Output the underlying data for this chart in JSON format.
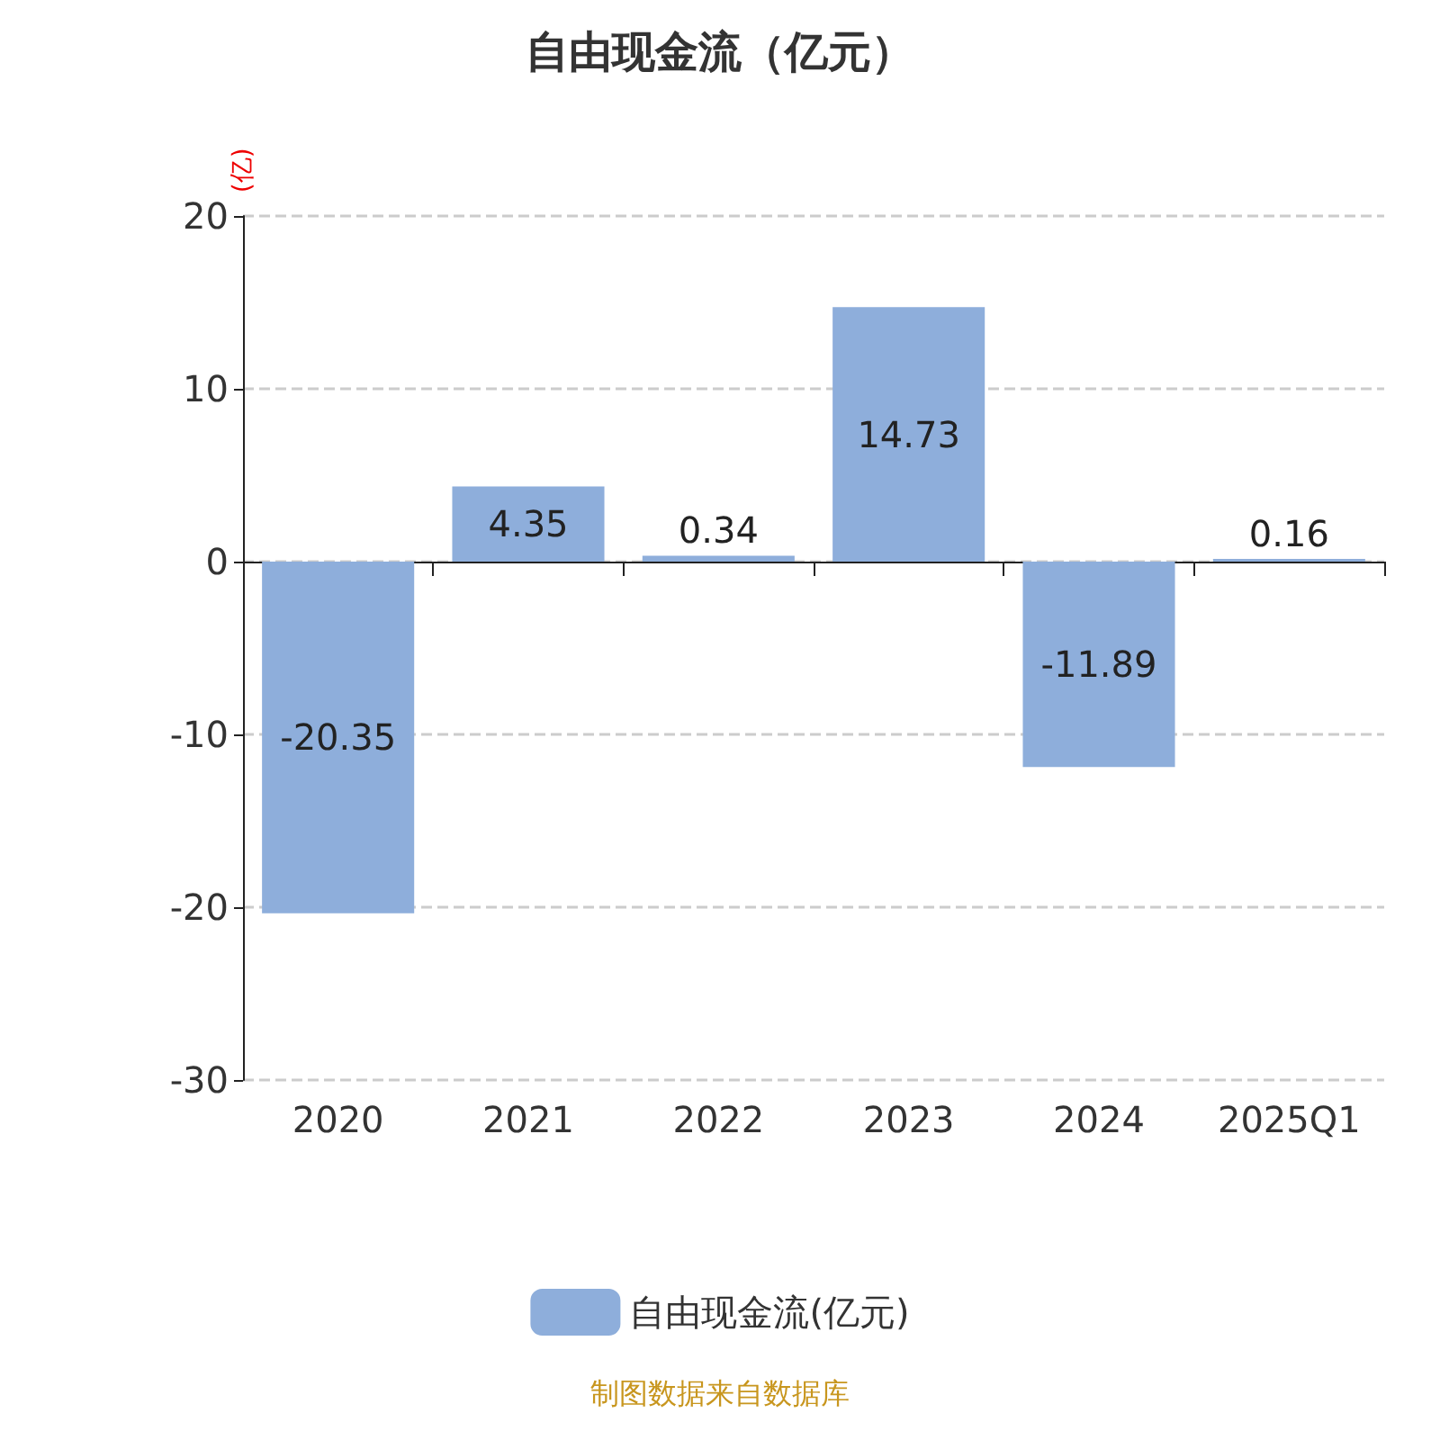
{
  "chart_data": {
    "type": "bar",
    "title": "自由现金流（亿元）",
    "ylabel": "(亿)",
    "categories": [
      "2020",
      "2021",
      "2022",
      "2023",
      "2024",
      "2025Q1"
    ],
    "series": [
      {
        "name": "自由现金流(亿元)",
        "color": "#8eaedb",
        "values": [
          -20.35,
          4.35,
          0.34,
          14.73,
          -11.89,
          0.16
        ]
      }
    ],
    "ylim": [
      -30,
      20
    ],
    "yticks": [
      -30,
      -20,
      -10,
      0,
      10,
      20
    ],
    "grid": "y",
    "data_labels": true,
    "legend": "bottom",
    "annotations": [
      "制图数据来自数据库"
    ]
  }
}
